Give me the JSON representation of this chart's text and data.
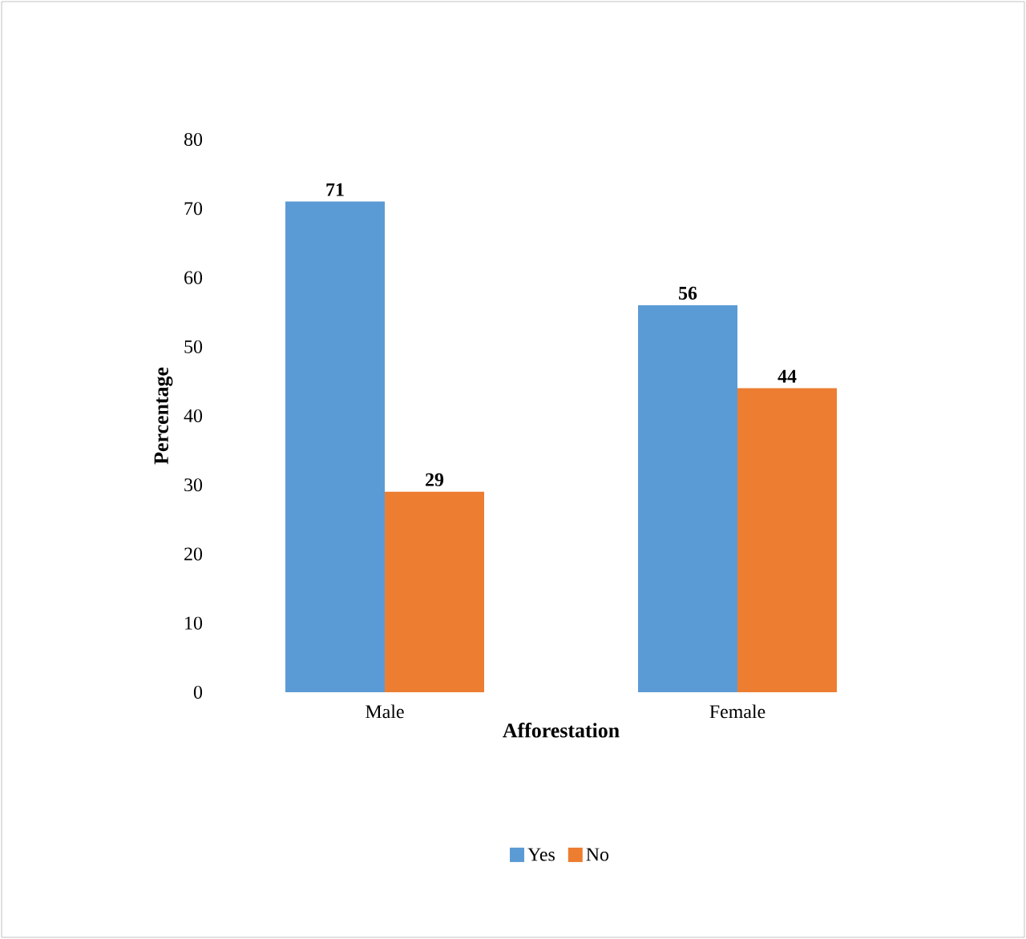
{
  "chart_data": {
    "type": "bar",
    "xlabel": "Afforestation",
    "ylabel": "Percentage",
    "categories": [
      "Male",
      "Female"
    ],
    "series": [
      {
        "name": "Yes",
        "color": "#5b9bd5",
        "values": [
          71,
          56
        ]
      },
      {
        "name": "No",
        "color": "#ed7d31",
        "values": [
          29,
          44
        ]
      }
    ],
    "ylim": [
      0,
      80
    ],
    "yticks": [
      0,
      10,
      20,
      30,
      40,
      50,
      60,
      70,
      80
    ],
    "data_labels": true,
    "legend": "bottom",
    "grid": false
  }
}
